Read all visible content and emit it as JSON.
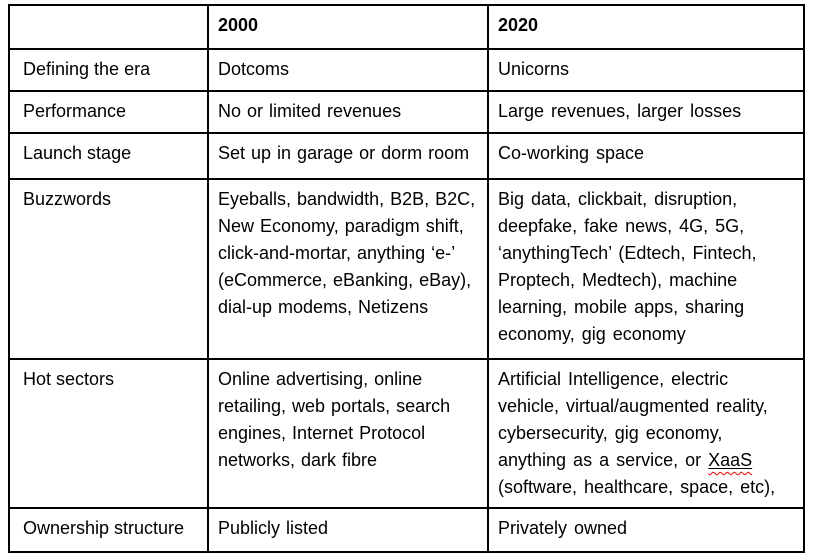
{
  "table": {
    "colors": {
      "border": "#000000",
      "text": "#000000",
      "background": "#ffffff",
      "spellcheck_squiggle": "#ff0000"
    },
    "header": {
      "col_label": "",
      "col_2000": "2000",
      "col_2020": "2020"
    },
    "rows": [
      {
        "label": "Defining the era",
        "y2000": "Dotcoms",
        "y2020": "Unicorns"
      },
      {
        "label": "Performance",
        "y2000": "No or limited revenues",
        "y2020": "Large revenues, larger losses"
      },
      {
        "label": "Launch stage",
        "y2000": "Set up in garage or dorm room",
        "y2020": "Co-working space"
      },
      {
        "label": "Buzzwords",
        "y2000": "Eyeballs, bandwidth, B2B, B2C, New Economy, paradigm shift, click-and-mortar, anything ‘e-’ (eCommerce, eBanking, eBay), dial-up modems, Netizens",
        "y2020": "Big data, clickbait, disruption, deepfake, fake news, 4G, 5G, ‘anythingTech’ (Edtech, Fintech, Proptech, Medtech), machine learning, mobile apps, sharing economy, gig economy"
      },
      {
        "label": "Hot sectors",
        "y2000": "Online advertising, online retailing, web portals, search engines, Internet Protocol networks, dark fibre",
        "y2020_parts": {
          "before": "Artificial Intelligence, electric vehicle, virtual/augmented reality, cybersecurity, gig economy, anything as a service, or ",
          "spellchecked_term": "XaaS",
          "after": " (software, healthcare, space, etc),"
        }
      },
      {
        "label": "Ownership structure",
        "y2000": "Publicly listed",
        "y2020": "Privately owned"
      }
    ]
  }
}
